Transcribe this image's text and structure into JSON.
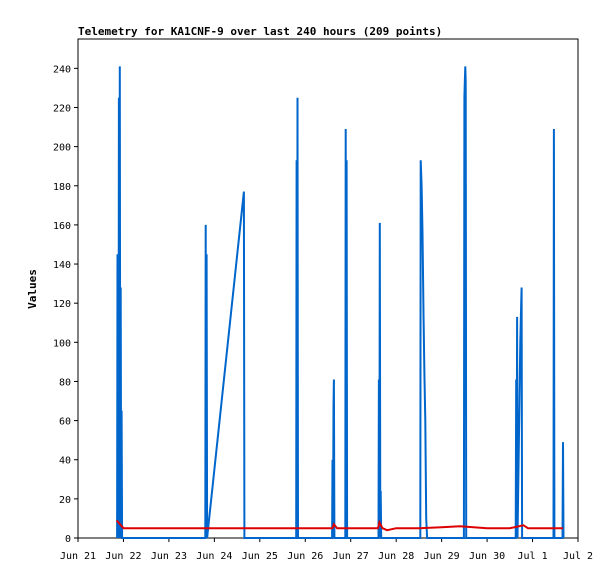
{
  "chart_data": {
    "type": "line",
    "title": "Telemetry for KA1CNF-9 over last 240 hours (209 points)",
    "xlabel": "",
    "ylabel": "Values",
    "xlim": [
      0,
      11
    ],
    "ylim": [
      0,
      255
    ],
    "x_tick_labels": [
      "Jun 21",
      "Jun 22",
      "Jun 23",
      "Jun 24",
      "Jun 25",
      "Jun 26",
      "Jun 27",
      "Jun 28",
      "Jun 29",
      "Jun 30",
      "Jul 1",
      "Jul 2"
    ],
    "x_tick_positions": [
      0,
      1,
      2,
      3,
      4,
      5,
      6,
      7,
      8,
      9,
      10,
      11
    ],
    "y_ticks": [
      0,
      20,
      40,
      60,
      80,
      100,
      120,
      140,
      160,
      180,
      200,
      220,
      240
    ],
    "grid": false,
    "series": [
      {
        "name": "",
        "color": "#0066cc",
        "points": [
          [
            0.86,
            0
          ],
          [
            0.87,
            145
          ],
          [
            0.88,
            40
          ],
          [
            0.89,
            0
          ],
          [
            0.9,
            225
          ],
          [
            0.91,
            0
          ],
          [
            0.92,
            241
          ],
          [
            0.93,
            0
          ],
          [
            0.94,
            128
          ],
          [
            0.95,
            0
          ],
          [
            0.96,
            65
          ],
          [
            0.97,
            0
          ],
          [
            2.8,
            0
          ],
          [
            2.81,
            160
          ],
          [
            2.82,
            0
          ],
          [
            2.83,
            145
          ],
          [
            2.84,
            0
          ],
          [
            3.65,
            177
          ],
          [
            3.66,
            0
          ],
          [
            4.8,
            0
          ],
          [
            4.81,
            193
          ],
          [
            4.82,
            0
          ],
          [
            4.83,
            225
          ],
          [
            4.84,
            0
          ],
          [
            5.59,
            0
          ],
          [
            5.6,
            40
          ],
          [
            5.61,
            0
          ],
          [
            5.62,
            67
          ],
          [
            5.63,
            81
          ],
          [
            5.64,
            0
          ],
          [
            5.88,
            0
          ],
          [
            5.89,
            209
          ],
          [
            5.9,
            0
          ],
          [
            5.91,
            193
          ],
          [
            5.92,
            0
          ],
          [
            6.61,
            0
          ],
          [
            6.62,
            81
          ],
          [
            6.63,
            0
          ],
          [
            6.64,
            161
          ],
          [
            6.65,
            0
          ],
          [
            6.66,
            24
          ],
          [
            6.67,
            0
          ],
          [
            7.53,
            0
          ],
          [
            7.54,
            193
          ],
          [
            7.56,
            180
          ],
          [
            7.58,
            156
          ],
          [
            7.6,
            115
          ],
          [
            7.62,
            84
          ],
          [
            7.64,
            60
          ],
          [
            7.66,
            10
          ],
          [
            7.68,
            0
          ],
          [
            8.49,
            0
          ],
          [
            8.5,
            225
          ],
          [
            8.51,
            233
          ],
          [
            8.52,
            241
          ],
          [
            8.53,
            233
          ],
          [
            8.54,
            0
          ],
          [
            9.63,
            0
          ],
          [
            9.64,
            81
          ],
          [
            9.65,
            0
          ],
          [
            9.66,
            113
          ],
          [
            9.67,
            0
          ],
          [
            9.7,
            50
          ],
          [
            9.73,
            100
          ],
          [
            9.75,
            120
          ],
          [
            9.76,
            128
          ],
          [
            9.77,
            0
          ],
          [
            10.46,
            0
          ],
          [
            10.47,
            209
          ],
          [
            10.48,
            0
          ],
          [
            10.66,
            0
          ],
          [
            10.67,
            49
          ],
          [
            10.68,
            0
          ]
        ]
      },
      {
        "name": "",
        "color": "#dd0000",
        "points": [
          [
            0.85,
            9
          ],
          [
            1.0,
            5
          ],
          [
            2.8,
            5
          ],
          [
            3.0,
            5
          ],
          [
            4.0,
            5
          ],
          [
            5.0,
            5
          ],
          [
            5.6,
            5
          ],
          [
            5.63,
            7
          ],
          [
            5.7,
            5
          ],
          [
            6.0,
            5
          ],
          [
            6.6,
            5
          ],
          [
            6.63,
            8
          ],
          [
            6.7,
            5
          ],
          [
            6.8,
            4
          ],
          [
            7.0,
            5
          ],
          [
            7.5,
            5
          ],
          [
            8.0,
            5.5
          ],
          [
            8.4,
            6
          ],
          [
            8.7,
            5.5
          ],
          [
            9.0,
            5
          ],
          [
            9.5,
            5
          ],
          [
            9.8,
            6.5
          ],
          [
            9.9,
            5
          ],
          [
            10.0,
            5
          ],
          [
            10.67,
            5
          ]
        ]
      }
    ]
  }
}
